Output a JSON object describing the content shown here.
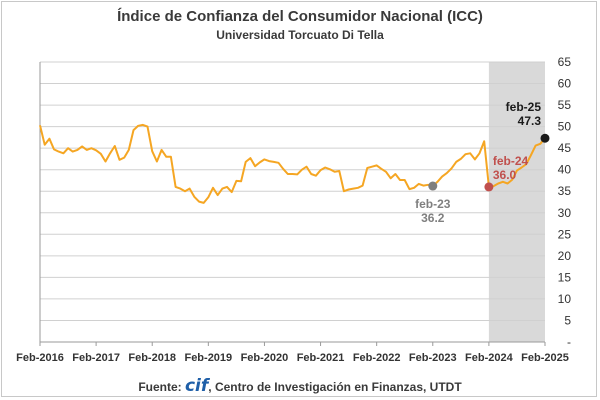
{
  "title": "Índice de Confianza del Consumidor Nacional (ICC)",
  "subtitle": "Universidad Torcuato Di Tella",
  "source": {
    "prefix": "Fuente: ",
    "logo": "cif",
    "rest": ", Centro de Investigación en Finanzas, UTDT"
  },
  "colors": {
    "line": "#F5A623",
    "shade": "#D9D9D9",
    "grid": "#D0D0D0",
    "marker_feb23": "#7F7F7F",
    "marker_feb24": "#C0504D",
    "marker_feb25": "#1A1A1A"
  },
  "chart_data": {
    "type": "line",
    "title": "Índice de Confianza del Consumidor Nacional (ICC)",
    "subtitle": "Universidad Torcuato Di Tella",
    "ylim": [
      0,
      65
    ],
    "yticks": [
      "-",
      "5",
      "10",
      "15",
      "20",
      "25",
      "30",
      "35",
      "40",
      "45",
      "50",
      "55",
      "60",
      "65"
    ],
    "xticks": [
      "Feb-2016",
      "Feb-2017",
      "Feb-2018",
      "Feb-2019",
      "Feb-2020",
      "Feb-2021",
      "Feb-2022",
      "Feb-2023",
      "Feb-2024",
      "Feb-2025"
    ],
    "grid": true,
    "shaded_period": [
      "Feb-2024",
      "Feb-2025"
    ],
    "series": [
      {
        "start": "Feb-2016",
        "frequency": "monthly",
        "values": [
          50.3,
          45.8,
          47.2,
          44.7,
          44.2,
          43.8,
          45.0,
          44.2,
          44.6,
          45.4,
          44.6,
          45.0,
          44.5,
          43.7,
          41.9,
          43.8,
          45.5,
          42.3,
          42.8,
          44.6,
          49.2,
          50.2,
          50.4,
          50.0,
          44.3,
          41.9,
          44.6,
          43.0,
          43.0,
          36.0,
          35.6,
          35.0,
          35.6,
          33.7,
          32.6,
          32.3,
          33.6,
          35.8,
          34.1,
          35.6,
          36.0,
          34.8,
          37.4,
          37.3,
          41.8,
          42.7,
          40.8,
          41.7,
          42.4,
          42.0,
          41.8,
          41.6,
          40.2,
          39.0,
          39.0,
          38.9,
          40.0,
          40.7,
          39.0,
          38.6,
          39.9,
          40.5,
          40.1,
          39.5,
          39.7,
          35.0,
          35.4,
          35.6,
          35.8,
          36.3,
          40.4,
          40.7,
          41.0,
          40.2,
          39.5,
          38.0,
          39.0,
          37.6,
          37.6,
          35.5,
          35.8,
          36.7,
          36.3,
          36.5,
          36.2,
          37.2,
          38.4,
          39.2,
          40.3,
          41.8,
          42.5,
          43.6,
          43.8,
          42.4,
          43.8,
          46.6,
          36.0,
          36.2,
          36.8,
          37.2,
          36.8,
          37.7,
          39.8,
          40.5,
          41.3,
          43.4,
          45.6,
          46.0,
          47.3
        ]
      }
    ],
    "annotations": [
      {
        "label": "feb-23",
        "value": "36.2",
        "x": "Feb-2023",
        "y": 36.2
      },
      {
        "label": "feb-24",
        "value": "36.0",
        "x": "Feb-2024",
        "y": 36.0
      },
      {
        "label": "feb-25",
        "value": "47.3",
        "x": "Feb-2025",
        "y": 47.3
      }
    ]
  }
}
